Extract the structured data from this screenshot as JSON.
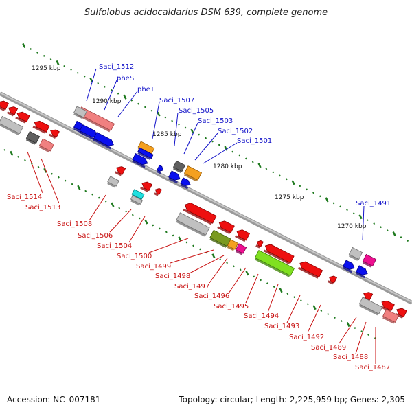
{
  "title": "Sulfolobus acidocaldarius DSM 639, complete genome",
  "footer": {
    "accession": "Accession: NC_007181",
    "topology": "Topology: circular; Length: 2,225,959 bp; Genes: 2,305"
  },
  "kbp_marks": [
    "1295 kbp",
    "1290 kbp",
    "1285 kbp",
    "1280 kbp",
    "1275 kbp",
    "1270 kbp"
  ],
  "labels_top": [
    "Saci_1512",
    "pheS",
    "pheT",
    "Saci_1507",
    "Saci_1505",
    "Saci_1503",
    "Saci_1502",
    "Saci_1501",
    "Saci_1491"
  ],
  "labels_bottom": [
    "Saci_1514",
    "Saci_1513",
    "Saci_1508",
    "Saci_1506",
    "Saci_1504",
    "Saci_1500",
    "Saci_1499",
    "Saci_1498",
    "Saci_1497",
    "Saci_1496",
    "Saci_1495",
    "Saci_1494",
    "Saci_1493",
    "Saci_1492",
    "Saci_1489",
    "Saci_1488",
    "Saci_1487"
  ],
  "colors": {
    "label_top": "#1010c8",
    "label_bottom": "#c81010",
    "backbone": "#888888",
    "forward_cds": "#0a10ee",
    "reverse_cds": "#ee1010",
    "tick": "#1f7a1f"
  }
}
